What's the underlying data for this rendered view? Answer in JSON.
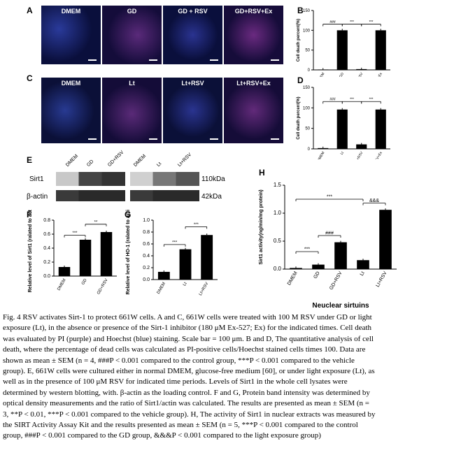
{
  "panels": {
    "a": "A",
    "b": "B",
    "c": "C",
    "d": "D",
    "e": "E",
    "f": "F",
    "g": "G",
    "h": "H"
  },
  "row_a_titles": [
    "DMEM",
    "GD",
    "GD + RSV",
    "GD+RSV+Ex"
  ],
  "row_c_titles": [
    "DMEM",
    "Lt",
    "Lt+RSV",
    "Lt+RSV+Ex"
  ],
  "blot": {
    "lanes_left": [
      "DMEM",
      "GD",
      "GD+RSV"
    ],
    "lanes_right": [
      "DMEM",
      "Lt",
      "Lt+RSV"
    ],
    "row1": "Sirt1",
    "row2": "β-actin",
    "size1": "110kDa",
    "size2": "42kDa"
  },
  "colors": {
    "bar": "#000000",
    "panel_bg_a": "#0a0f3c",
    "panel_bg_c": "#0b1038"
  },
  "chart_data": [
    {
      "id": "B",
      "type": "bar",
      "ylabel": "Cell death percent(%)",
      "yticks": [
        0,
        50,
        100,
        150
      ],
      "ylim": [
        0,
        150
      ],
      "categories": [
        "DMEM",
        "GD",
        "GD+RSV",
        "GD+RSV+Ex"
      ],
      "values": [
        1,
        100,
        2,
        100
      ],
      "annotations": [
        "###",
        "***",
        "***"
      ]
    },
    {
      "id": "D",
      "type": "bar",
      "ylabel": "Cell death percent(%)",
      "yticks": [
        0,
        50,
        100,
        150
      ],
      "ylim": [
        0,
        150
      ],
      "categories": [
        "DMEM",
        "Lt",
        "Lt+RSV",
        "Lt+RSV+Ex"
      ],
      "values": [
        2,
        96,
        11,
        96
      ],
      "annotations": [
        "###",
        "***",
        "***"
      ]
    },
    {
      "id": "F",
      "type": "bar",
      "ylabel": "Relative level of Sirt1 (ralated to actin)",
      "yticks": [
        "0.0",
        "0.2",
        "0.4",
        "0.6",
        "0.8"
      ],
      "ylim": [
        0,
        0.8
      ],
      "categories": [
        "DMEM",
        "GD",
        "GD+RSV"
      ],
      "values": [
        0.13,
        0.52,
        0.63
      ],
      "annotations": [
        "***",
        "**"
      ]
    },
    {
      "id": "G",
      "type": "bar",
      "ylabel": "Relative level of HO-1 (ralated to actin)",
      "yticks": [
        "0.0",
        "0.2",
        "0.4",
        "0.6",
        "0.8",
        "1.0"
      ],
      "ylim": [
        0,
        1.0
      ],
      "categories": [
        "DMEM",
        "Lt",
        "Lt+RSV"
      ],
      "values": [
        0.13,
        0.51,
        0.75
      ],
      "annotations": [
        "***",
        "***"
      ]
    },
    {
      "id": "H",
      "type": "bar",
      "ylabel": "Sirt1 activity(ng/min/mg protein)",
      "xlabel": "Neuclear sirtuins",
      "yticks": [
        "0.0",
        "0.5",
        "1.0",
        "1.5"
      ],
      "ylim": [
        0,
        1.5
      ],
      "categories": [
        "DMEM",
        "GD",
        "GD+RSV",
        "Lt",
        "Lt+RSV"
      ],
      "values": [
        0.02,
        0.08,
        0.48,
        0.16,
        1.06
      ],
      "annotations": [
        "***",
        "###",
        "***",
        "&&&"
      ]
    }
  ],
  "caption_lines": [
    "Fig. 4 RSV activates Sirt-1 to protect 661W cells. A and C, 661W cells were treated  with 100  M RSV under GD or light",
    "exposure (Lt), in the absence or presence of the Sirt-1 inhibitor (180 μM Ex-527; Ex) for the indicated times. Cell death",
    "was evaluated  by PI (purple) and Hoechst (blue) staining. Scale bar = 100 μm. B and D, The  quantitative analysis of cell",
    "death, where the percentage of dead cells was calculated  as PI-positive cells/Hoechst stained cells times 100. Data are",
    "shown as mean ± SEM  (n = 4, ###P < 0.001 compared to the control group, ***P < 0.001 compared to the vehicle",
    "group). E, 661W cells were cultured either in normal DMEM, glucose-free medium [60], or under light exposure (Lt), as",
    "well as in the presence of 100 μM RSV for indicated time periods. Levels of Sirt1 in the whole cell lysates were",
    "determined  by western blotting, with. β-actin as the loading control. F and G, Protein band intensity was determined by",
    "optical density measurements and the ratio of Sirt1/actin was calculated. The results are presented as mean ± SEM (n =",
    "3, **P < 0.01, ***P < 0.001 compared to the vehicle group). H, The activity of Sirt1 in nuclear extracts was measured by",
    "the SIRT Activity Assay Kit and the results presented as mean ± SEM (n = 5, ***P < 0.001 compared to the control",
    "group, ###P < 0.001 compared to the GD group, &&&P < 0.001 compared to the light exposure group)"
  ]
}
